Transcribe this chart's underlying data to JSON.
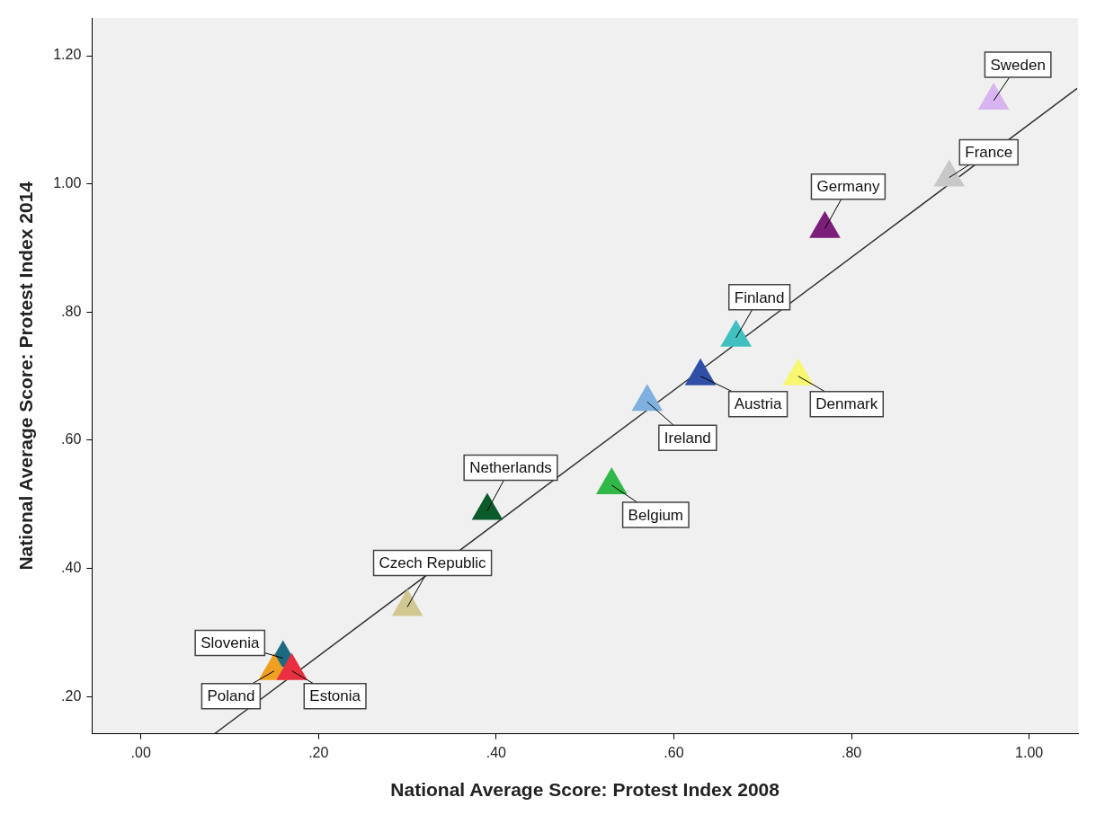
{
  "chart_data": {
    "type": "scatter",
    "xlabel": "National Average Score: Protest Index 2008",
    "ylabel": "National Average Score: Protest Index 2014",
    "xlim": [
      -0.055,
      1.055
    ],
    "ylim": [
      0.142,
      1.259
    ],
    "xticks": [
      {
        "value": 0,
        "label": ".00"
      },
      {
        "value": 0.2,
        "label": ".20"
      },
      {
        "value": 0.4,
        "label": ".40"
      },
      {
        "value": 0.6,
        "label": ".60"
      },
      {
        "value": 0.8,
        "label": ".80"
      },
      {
        "value": 1,
        "label": "1.00"
      }
    ],
    "yticks": [
      {
        "value": 0.2,
        "label": ".20"
      },
      {
        "value": 0.4,
        "label": ".40"
      },
      {
        "value": 0.6,
        "label": ".60"
      },
      {
        "value": 0.8,
        "label": ".80"
      },
      {
        "value": 1,
        "label": "1.00"
      },
      {
        "value": 1.2,
        "label": "1.20"
      }
    ],
    "grid": false,
    "legend": false,
    "marker": "triangle",
    "series": [
      {
        "name": "Sweden",
        "color": "#d8b4f0",
        "x": [
          0.96
        ],
        "values": [
          1.13
        ]
      },
      {
        "name": "France",
        "color": "#c8c8c8",
        "x": [
          0.91
        ],
        "values": [
          1.01
        ]
      },
      {
        "name": "Germany",
        "color": "#7b1f7b",
        "x": [
          0.77
        ],
        "values": [
          0.93
        ]
      },
      {
        "name": "Finland",
        "color": "#40c0c0",
        "x": [
          0.67
        ],
        "values": [
          0.76
        ]
      },
      {
        "name": "Austria",
        "color": "#3050a8",
        "x": [
          0.63
        ],
        "values": [
          0.7
        ]
      },
      {
        "name": "Denmark",
        "color": "#f8f870",
        "x": [
          0.74
        ],
        "values": [
          0.7
        ]
      },
      {
        "name": "Ireland",
        "color": "#80b0e0",
        "x": [
          0.57
        ],
        "values": [
          0.66
        ]
      },
      {
        "name": "Belgium",
        "color": "#30b848",
        "x": [
          0.53
        ],
        "values": [
          0.53
        ]
      },
      {
        "name": "Netherlands",
        "color": "#0a5a2a",
        "x": [
          0.39
        ],
        "values": [
          0.49
        ]
      },
      {
        "name": "Czech Republic",
        "color": "#d0c890",
        "x": [
          0.3
        ],
        "values": [
          0.34
        ]
      },
      {
        "name": "Estonia",
        "color": "#e83040",
        "x": [
          0.17
        ],
        "values": [
          0.24
        ]
      },
      {
        "name": "Poland",
        "color": "#f0a020",
        "x": [
          0.15
        ],
        "values": [
          0.24
        ]
      },
      {
        "name": "Slovenia",
        "color": "#1e6a80",
        "x": [
          0.16
        ],
        "values": [
          0.26
        ]
      },
      {
        "type": "line",
        "marker": "none",
        "color": "#333333",
        "x": [
          0.083,
          1.054
        ],
        "values": [
          0.142,
          1.149
        ]
      }
    ]
  }
}
